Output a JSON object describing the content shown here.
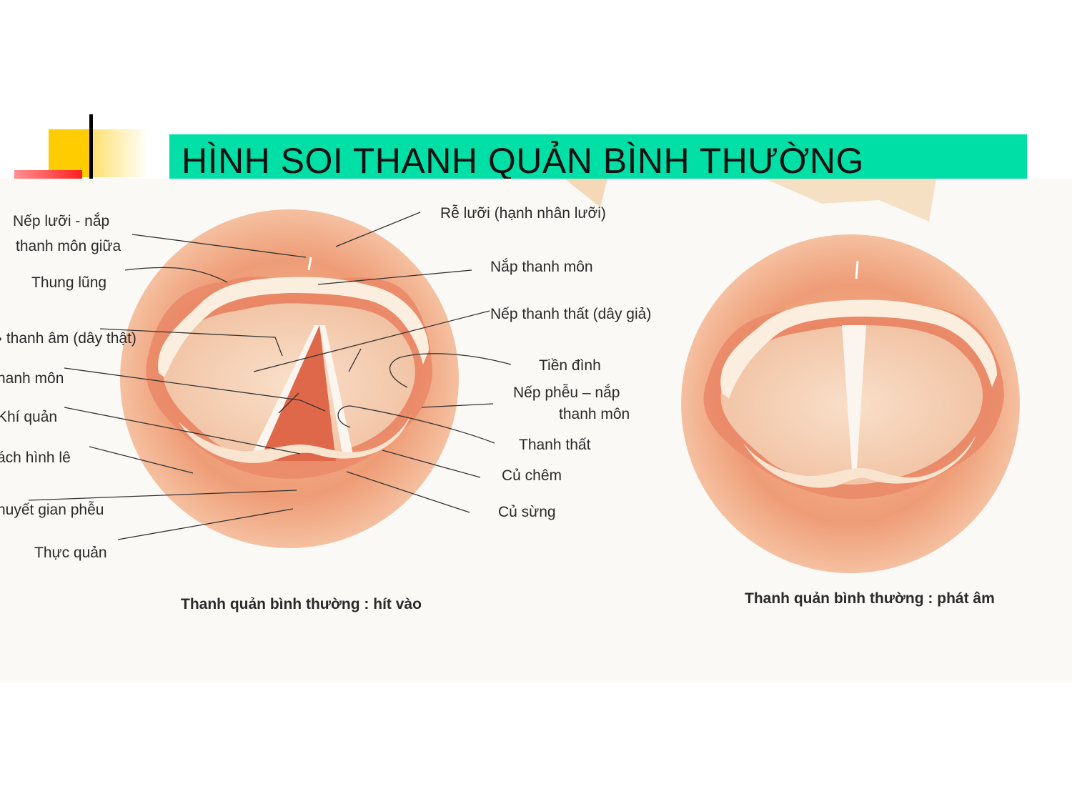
{
  "slide": {
    "title": "HÌNH SOI THANH QUẢN BÌNH THƯỜNG",
    "accent_color": "#00dfa6"
  },
  "figure": {
    "left_labels": {
      "nep_luoi_1": "Nếp lưỡi - nắp",
      "nep_luoi_2": "thanh môn giữa",
      "thung_lung": "Thung lũng",
      "day_thanh_am": "› thanh âm (dây thật)",
      "thanh_mon": "hanh môn",
      "khi_quan": "Khí quản",
      "ngach_hinh_le": "ách hình lê",
      "ngach_gian_pheu": "huyết gian phễu",
      "thuc_quan": "Thực quản"
    },
    "right_labels": {
      "re_luoi": "Rễ lưỡi (hạnh nhân lưỡi)",
      "nap_thanh_mon": "Nắp thanh môn",
      "nep_thanh_that": "Nếp thanh thất (dây giả)",
      "tien_dinh": "Tiền đình",
      "nep_pheu_1": "Nếp phễu – nắp",
      "nep_pheu_2": "thanh môn",
      "thanh_that": "Thanh thất",
      "cu_chem": "Củ chêm",
      "cu_sung": "Củ sừng"
    },
    "captions": {
      "inhale": "Thanh quản bình thường : hít vào",
      "phonation": "Thanh quản bình thường : phát âm"
    }
  }
}
